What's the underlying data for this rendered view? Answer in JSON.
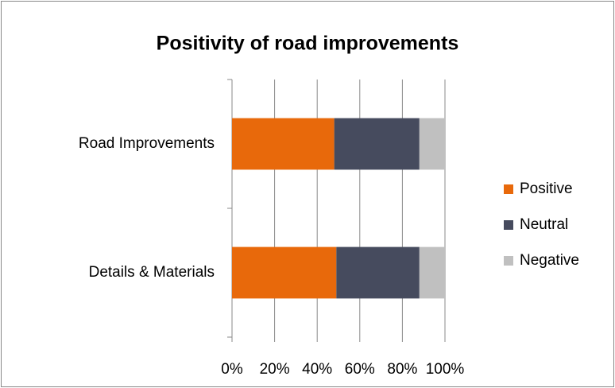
{
  "chart_data": {
    "type": "stacked-bar-horizontal",
    "title": "Positivity of road improvements",
    "categories": [
      "Road Improvements",
      "Details & Materials"
    ],
    "series": [
      {
        "name": "Positive",
        "color": "#e8690b",
        "values": [
          48,
          49
        ]
      },
      {
        "name": "Neutral",
        "color": "#464b5e",
        "values": [
          40,
          39
        ]
      },
      {
        "name": "Negative",
        "color": "#c0c0c0",
        "values": [
          12,
          12
        ]
      }
    ],
    "xlim": [
      0,
      100
    ],
    "xticks": [
      {
        "value": 0,
        "label": "0%"
      },
      {
        "value": 20,
        "label": "20%"
      },
      {
        "value": 40,
        "label": "40%"
      },
      {
        "value": 60,
        "label": "60%"
      },
      {
        "value": 80,
        "label": "80%"
      },
      {
        "value": 100,
        "label": "100%"
      }
    ],
    "grid": true,
    "legend": "right"
  }
}
